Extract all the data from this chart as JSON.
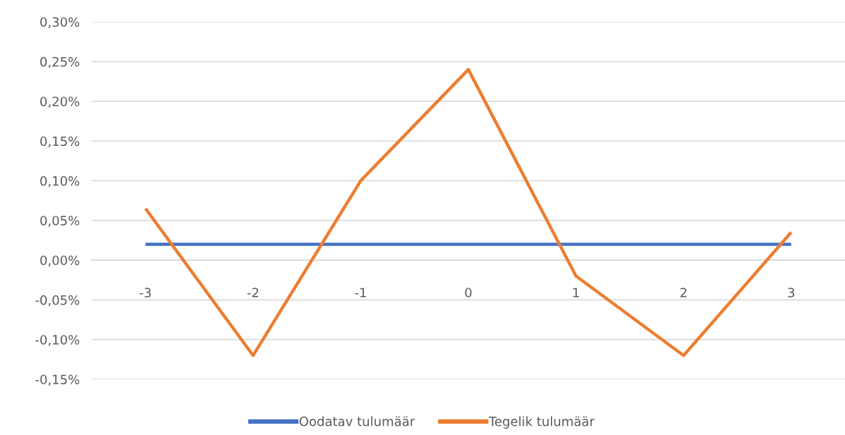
{
  "chart_data": {
    "type": "line",
    "categories": [
      "-3",
      "-2",
      "-1",
      "0",
      "1",
      "2",
      "3"
    ],
    "series": [
      {
        "name": "Oodatav tulumäär",
        "color": "#4472c4",
        "values": [
          0.02,
          0.02,
          0.02,
          0.02,
          0.02,
          0.02,
          0.02
        ]
      },
      {
        "name": "Tegelik tulumäär",
        "color": "#ed7d31",
        "values": [
          0.065,
          -0.12,
          0.1,
          0.24,
          -0.02,
          -0.12,
          0.035
        ]
      }
    ],
    "ylim": [
      -0.15,
      0.3
    ],
    "yticks": [
      {
        "value": -0.15,
        "label": "-0,15%"
      },
      {
        "value": -0.1,
        "label": "-0,10%"
      },
      {
        "value": -0.05,
        "label": "-0,05%"
      },
      {
        "value": 0,
        "label": "0,00%"
      },
      {
        "value": 0.05,
        "label": "0,05%"
      },
      {
        "value": 0.1,
        "label": "0,10%"
      },
      {
        "value": 0.15,
        "label": "0,15%"
      },
      {
        "value": 0.2,
        "label": "0,20%"
      },
      {
        "value": 0.25,
        "label": "0,25%"
      },
      {
        "value": 0.3,
        "label": "0,30%"
      }
    ],
    "grid": "y",
    "legend": "bottom",
    "line_style": "solid"
  }
}
